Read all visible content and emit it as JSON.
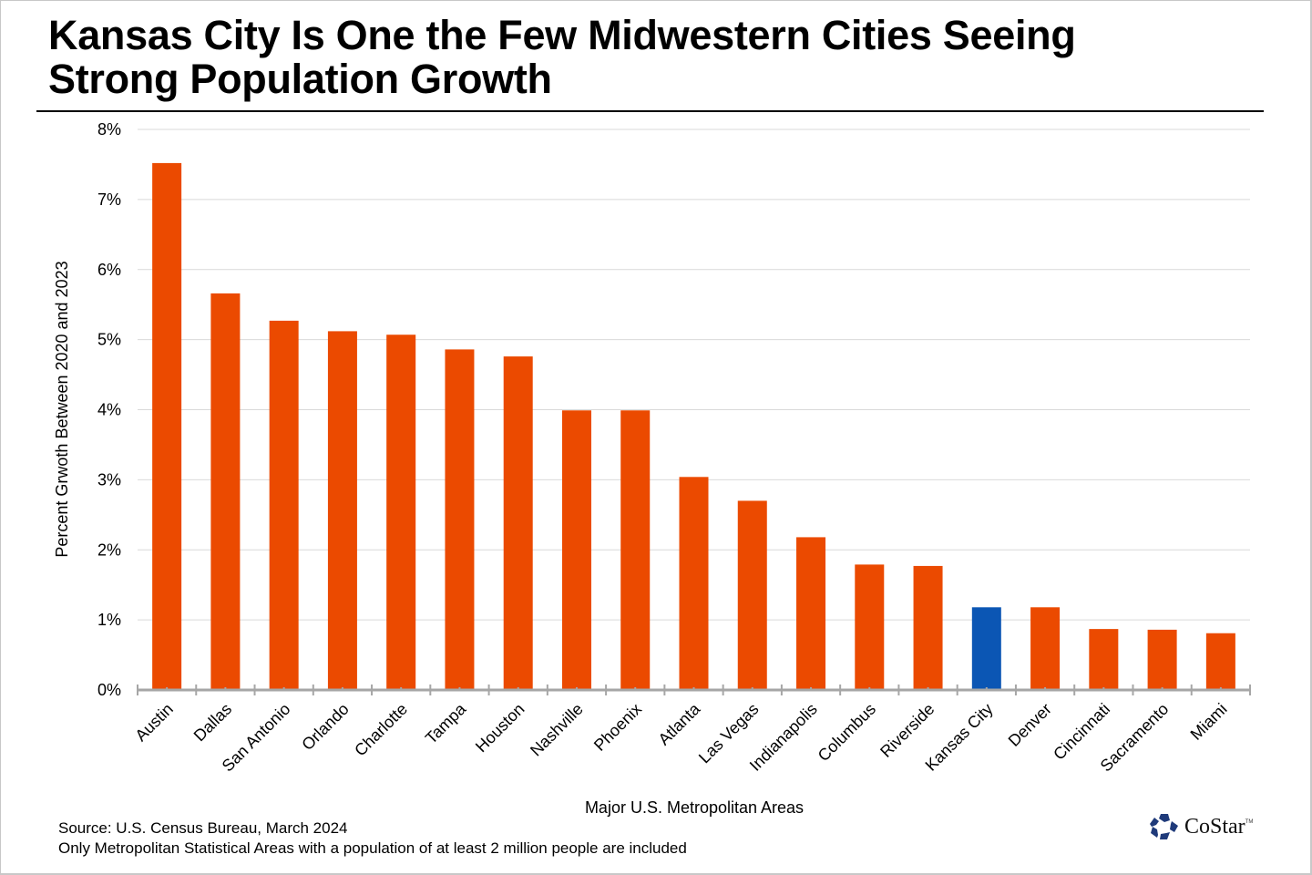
{
  "title": "Kansas City Is One the Few Midwestern Cities Seeing Strong Population Growth",
  "title_lines": [
    "Kansas City Is One the Few Midwestern Cities Seeing",
    "Strong Population Growth"
  ],
  "footer": {
    "source": "Source: U.S. Census Bureau, March 2024",
    "note": "Only Metropolitan Statistical Areas with a population of at least 2 million people are included",
    "logo_text": "CoStar",
    "logo_tm": "TM"
  },
  "colors": {
    "bar": "#EB4A00",
    "highlight": "#0B56B4",
    "grid": "#D9D9D9",
    "axis": "#A6A6A6",
    "logo": "#1F3A7A"
  },
  "chart_data": {
    "type": "bar",
    "title": "Kansas City Is One the Few Midwestern Cities Seeing Strong Population Growth",
    "xlabel": "Major U.S. Metropolitan Areas",
    "ylabel": "Percent Grwoth Between 2020 and 2023",
    "ylim": [
      0,
      8
    ],
    "yticks": [
      0,
      1,
      2,
      3,
      4,
      5,
      6,
      7,
      8
    ],
    "ytick_labels": [
      "0%",
      "1%",
      "2%",
      "3%",
      "4%",
      "5%",
      "6%",
      "7%",
      "8%"
    ],
    "grid": true,
    "legend": "none",
    "highlight_category": "Kansas City",
    "categories": [
      "Austin",
      "Dallas",
      "San Antonio",
      "Orlando",
      "Charlotte",
      "Tampa",
      "Houston",
      "Nashville",
      "Phoenix",
      "Atlanta",
      "Las Vegas",
      "Indianapolis",
      "Columbus",
      "Riverside",
      "Kansas City",
      "Denver",
      "Cincinnati",
      "Sacramento",
      "Miami"
    ],
    "values": [
      7.52,
      5.66,
      5.27,
      5.12,
      5.07,
      4.86,
      4.76,
      3.99,
      3.99,
      3.04,
      2.7,
      2.18,
      1.79,
      1.77,
      1.18,
      1.18,
      0.87,
      0.86,
      0.81
    ],
    "unit": "%"
  }
}
